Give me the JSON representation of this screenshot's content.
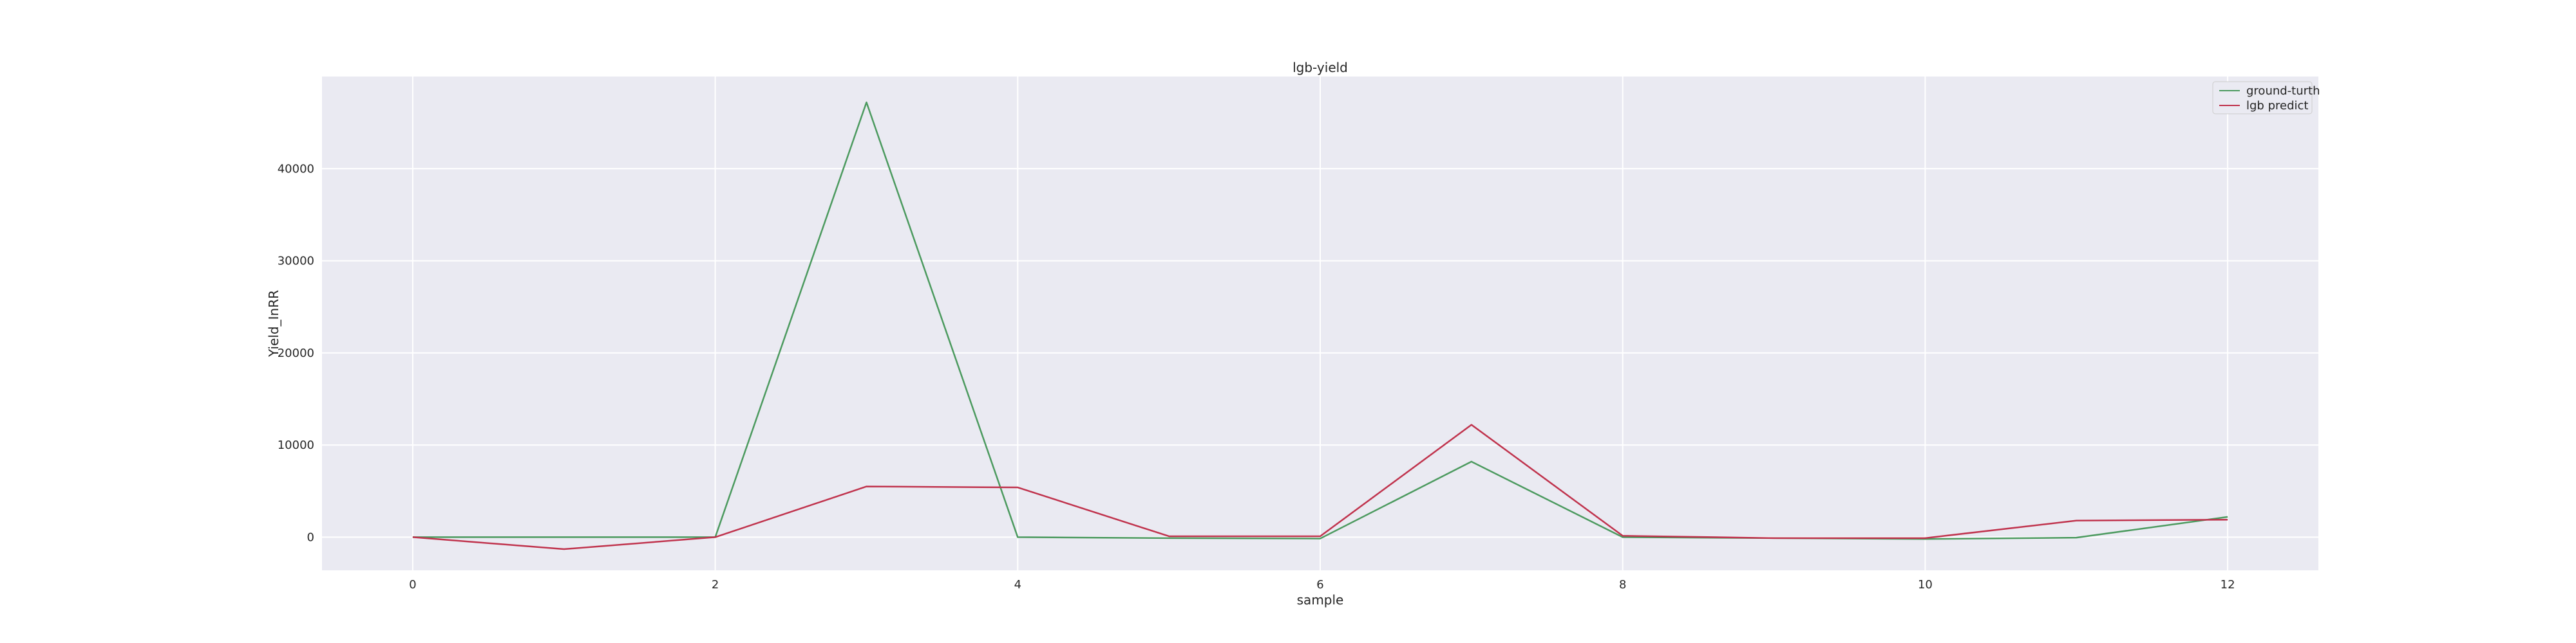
{
  "chart_data": {
    "type": "line",
    "title": "lgb-yield",
    "xlabel": "sample",
    "ylabel": "Yield_InRR",
    "xlim": [
      -0.6,
      12.6
    ],
    "ylim": [
      -3600,
      50000
    ],
    "xticks": [
      0,
      2,
      4,
      6,
      8,
      10,
      12
    ],
    "yticks": [
      0,
      10000,
      20000,
      30000,
      40000
    ],
    "grid": true,
    "legend_position": "top-right",
    "background_color": "#eaeaf2",
    "x": [
      0,
      1,
      2,
      3,
      4,
      5,
      6,
      7,
      8,
      9,
      10,
      11,
      12
    ],
    "series": [
      {
        "name": "ground-turth",
        "color": "#4c9a5f",
        "values": [
          0,
          0,
          0,
          47200,
          0,
          -100,
          -150,
          8200,
          0,
          -100,
          -200,
          -50,
          2200
        ]
      },
      {
        "name": "lgb predict",
        "color": "#c0334d",
        "values": [
          0,
          -1300,
          0,
          5500,
          5400,
          100,
          100,
          12200,
          150,
          -100,
          -100,
          1800,
          1900
        ]
      }
    ]
  }
}
